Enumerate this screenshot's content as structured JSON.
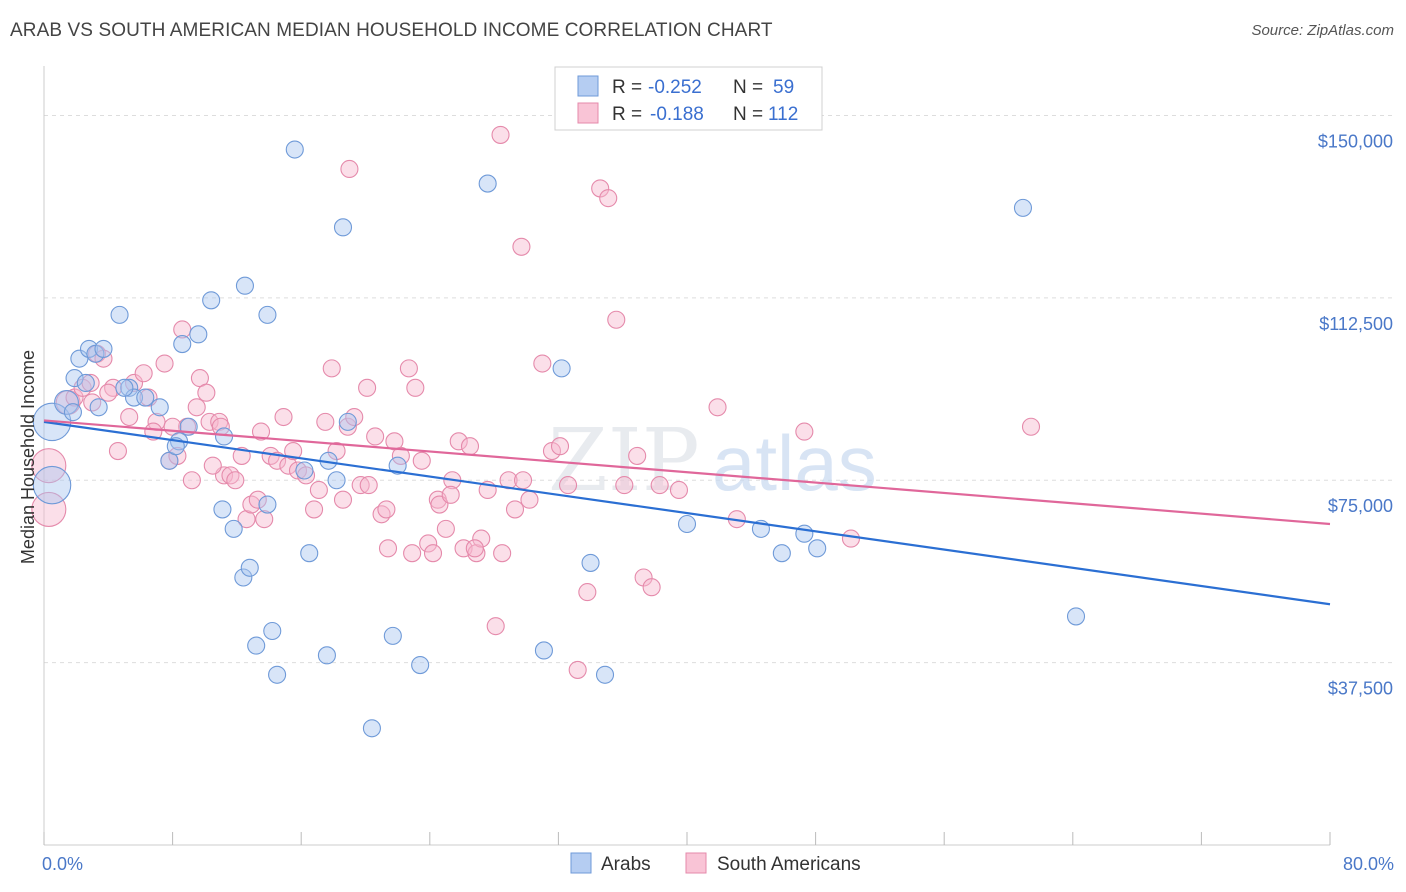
{
  "title": "ARAB VS SOUTH AMERICAN MEDIAN HOUSEHOLD INCOME CORRELATION CHART",
  "source": "Source: ZipAtlas.com",
  "watermark": {
    "zip": "ZIP",
    "atlas": "atlas"
  },
  "colors": {
    "arabs_fill": "#a9c5f0",
    "arabs_stroke": "#6f9ad8",
    "arabs_line": "#2b6fd3",
    "sa_fill": "#f7b9cf",
    "sa_stroke": "#e58aab",
    "sa_line": "#e0679a",
    "tick_text": "#4a78c8",
    "grid": "#dddddd"
  },
  "legend": {
    "rows": [
      {
        "r_label": "R = ",
        "r_value": "-0.252",
        "n_label": "N = ",
        "n_value": "59"
      },
      {
        "r_label": "R = ",
        "r_value": "-0.188",
        "n_label": "N = ",
        "n_value": "112"
      }
    ]
  },
  "chart_data": {
    "type": "scatter",
    "title": "ARAB VS SOUTH AMERICAN MEDIAN HOUSEHOLD INCOME CORRELATION CHART",
    "xlabel": "",
    "ylabel": "Median Household Income",
    "xlim": [
      0,
      80
    ],
    "ylim": [
      0,
      157500
    ],
    "x_tick_labels": [
      "0.0%",
      "80.0%"
    ],
    "y_ticks": [
      37500,
      75000,
      112500,
      150000
    ],
    "y_tick_labels": [
      "$37,500",
      "$75,000",
      "$112,500",
      "$150,000"
    ],
    "legend_position": "top-center",
    "bottom_legend": [
      "Arabs",
      "South Americans"
    ],
    "grid": true,
    "series": [
      {
        "name": "Arabs",
        "trend": {
          "x": [
            0,
            80
          ],
          "y": [
            87000,
            49500
          ]
        },
        "points": [
          [
            0.5,
            87000,
            2.2
          ],
          [
            0.5,
            74000,
            2.2
          ],
          [
            1.4,
            91000,
            1.4
          ],
          [
            1.8,
            89000,
            1
          ],
          [
            2.2,
            100000,
            1
          ],
          [
            2.8,
            102000,
            1
          ],
          [
            3.2,
            101000,
            1
          ],
          [
            1.9,
            96000,
            1
          ],
          [
            3.4,
            90000,
            1
          ],
          [
            4.7,
            109000,
            1
          ],
          [
            3.7,
            102000,
            1
          ],
          [
            5.3,
            94000,
            1
          ],
          [
            5.6,
            92000,
            1
          ],
          [
            6.3,
            92000,
            1
          ],
          [
            7.2,
            90000,
            1
          ],
          [
            8.4,
            83000,
            1
          ],
          [
            7.8,
            79000,
            1
          ],
          [
            8.2,
            82000,
            1
          ],
          [
            8.6,
            103000,
            1
          ],
          [
            9.6,
            105000,
            1
          ],
          [
            10.4,
            112000,
            1
          ],
          [
            11.2,
            84000,
            1
          ],
          [
            11.1,
            69000,
            1
          ],
          [
            11.8,
            65000,
            1
          ],
          [
            12.4,
            55000,
            1
          ],
          [
            12.5,
            115000,
            1
          ],
          [
            13.9,
            109000,
            1
          ],
          [
            13.9,
            70000,
            1
          ],
          [
            12.8,
            57000,
            1
          ],
          [
            15.6,
            143000,
            1
          ],
          [
            18.6,
            127000,
            1
          ],
          [
            18.9,
            87000,
            1
          ],
          [
            17.7,
            79000,
            1
          ],
          [
            16.2,
            77000,
            1
          ],
          [
            18.2,
            75000,
            1
          ],
          [
            16.5,
            60000,
            1
          ],
          [
            13.2,
            41000,
            1
          ],
          [
            14.2,
            44000,
            1
          ],
          [
            14.5,
            35000,
            1
          ],
          [
            17.6,
            39000,
            1
          ],
          [
            22.0,
            78000,
            1
          ],
          [
            20.4,
            24000,
            1
          ],
          [
            21.7,
            43000,
            1
          ],
          [
            23.4,
            37000,
            1
          ],
          [
            27.6,
            136000,
            1
          ],
          [
            32.2,
            98000,
            1
          ],
          [
            31.1,
            40000,
            1
          ],
          [
            34.0,
            58000,
            1
          ],
          [
            34.9,
            35000,
            1
          ],
          [
            40.0,
            66000,
            1
          ],
          [
            44.6,
            65000,
            1
          ],
          [
            45.9,
            60000,
            1
          ],
          [
            47.3,
            64000,
            1
          ],
          [
            48.1,
            61000,
            1
          ],
          [
            60.9,
            131000,
            1
          ],
          [
            64.2,
            47000,
            1
          ],
          [
            5.0,
            94000,
            1
          ],
          [
            2.6,
            95000,
            1
          ],
          [
            9.0,
            86000,
            1
          ]
        ]
      },
      {
        "name": "South Americans",
        "trend": {
          "x": [
            0,
            80
          ],
          "y": [
            87300,
            66000
          ]
        },
        "points": [
          [
            0.3,
            78000,
            2
          ],
          [
            0.3,
            69000,
            2
          ],
          [
            1.5,
            91000,
            1.4
          ],
          [
            1.9,
            92000,
            1
          ],
          [
            2.4,
            94000,
            1
          ],
          [
            2.9,
            95000,
            1
          ],
          [
            3.3,
            101000,
            1
          ],
          [
            3.7,
            100000,
            1
          ],
          [
            4.3,
            94000,
            1
          ],
          [
            4.6,
            81000,
            1
          ],
          [
            5.3,
            88000,
            1
          ],
          [
            5.6,
            95000,
            1
          ],
          [
            6.2,
            97000,
            1
          ],
          [
            6.5,
            92000,
            1
          ],
          [
            7.0,
            87000,
            1
          ],
          [
            7.5,
            99000,
            1
          ],
          [
            7.8,
            79000,
            1
          ],
          [
            8.3,
            80000,
            1
          ],
          [
            8.6,
            106000,
            1
          ],
          [
            8.9,
            86000,
            1
          ],
          [
            9.2,
            75000,
            1
          ],
          [
            9.5,
            90000,
            1
          ],
          [
            9.7,
            96000,
            1
          ],
          [
            10.1,
            93000,
            1
          ],
          [
            10.3,
            87000,
            1
          ],
          [
            10.9,
            87000,
            1
          ],
          [
            11.2,
            76000,
            1
          ],
          [
            11.6,
            76000,
            1
          ],
          [
            11.9,
            75000,
            1
          ],
          [
            12.3,
            80000,
            1
          ],
          [
            12.6,
            67000,
            1
          ],
          [
            12.9,
            70000,
            1
          ],
          [
            13.3,
            71000,
            1
          ],
          [
            13.7,
            67000,
            1
          ],
          [
            14.1,
            80000,
            1
          ],
          [
            14.5,
            79000,
            1
          ],
          [
            14.9,
            88000,
            1
          ],
          [
            15.2,
            78000,
            1
          ],
          [
            15.5,
            81000,
            1
          ],
          [
            15.8,
            77000,
            1
          ],
          [
            16.3,
            76000,
            1
          ],
          [
            16.8,
            69000,
            1
          ],
          [
            17.1,
            73000,
            1
          ],
          [
            17.5,
            87000,
            1
          ],
          [
            17.9,
            98000,
            1
          ],
          [
            18.2,
            81000,
            1
          ],
          [
            18.6,
            71000,
            1
          ],
          [
            18.9,
            86000,
            1
          ],
          [
            19.3,
            88000,
            1
          ],
          [
            19.7,
            74000,
            1
          ],
          [
            20.1,
            94000,
            1
          ],
          [
            20.6,
            84000,
            1
          ],
          [
            21.0,
            68000,
            1
          ],
          [
            21.3,
            69000,
            1
          ],
          [
            21.8,
            83000,
            1
          ],
          [
            22.2,
            80000,
            1
          ],
          [
            22.7,
            98000,
            1
          ],
          [
            23.1,
            94000,
            1
          ],
          [
            23.5,
            79000,
            1
          ],
          [
            23.9,
            62000,
            1
          ],
          [
            24.2,
            60000,
            1
          ],
          [
            24.5,
            71000,
            1
          ],
          [
            25.0,
            65000,
            1
          ],
          [
            25.4,
            75000,
            1
          ],
          [
            25.8,
            83000,
            1
          ],
          [
            26.1,
            61000,
            1
          ],
          [
            26.5,
            82000,
            1
          ],
          [
            26.9,
            60000,
            1
          ],
          [
            27.2,
            63000,
            1
          ],
          [
            27.6,
            73000,
            1
          ],
          [
            28.1,
            45000,
            1
          ],
          [
            28.5,
            60000,
            1
          ],
          [
            28.9,
            75000,
            1
          ],
          [
            29.3,
            69000,
            1
          ],
          [
            29.8,
            75000,
            1
          ],
          [
            30.2,
            71000,
            1
          ],
          [
            31.0,
            99000,
            1
          ],
          [
            31.6,
            81000,
            1
          ],
          [
            32.1,
            82000,
            1
          ],
          [
            32.6,
            74000,
            1
          ],
          [
            33.2,
            36000,
            1
          ],
          [
            33.8,
            52000,
            1
          ],
          [
            34.6,
            135000,
            1
          ],
          [
            35.1,
            133000,
            1
          ],
          [
            35.6,
            108000,
            1
          ],
          [
            36.1,
            74000,
            1
          ],
          [
            36.9,
            80000,
            1
          ],
          [
            37.3,
            55000,
            1
          ],
          [
            37.8,
            53000,
            1
          ],
          [
            38.3,
            74000,
            1
          ],
          [
            39.5,
            73000,
            1
          ],
          [
            41.9,
            90000,
            1
          ],
          [
            43.1,
            67000,
            1
          ],
          [
            47.3,
            85000,
            1
          ],
          [
            50.2,
            63000,
            1
          ],
          [
            61.4,
            86000,
            1
          ],
          [
            28.4,
            146000,
            1
          ],
          [
            29.7,
            123000,
            1
          ],
          [
            19.0,
            139000,
            1
          ],
          [
            10.5,
            78000,
            1
          ],
          [
            6.8,
            85000,
            1
          ],
          [
            8.0,
            86000,
            1
          ],
          [
            11.0,
            86000,
            1
          ],
          [
            13.5,
            85000,
            1
          ],
          [
            20.2,
            74000,
            1
          ],
          [
            21.4,
            61000,
            1
          ],
          [
            22.9,
            60000,
            1
          ],
          [
            24.6,
            70000,
            1
          ],
          [
            25.3,
            72000,
            1
          ],
          [
            26.8,
            61000,
            1
          ],
          [
            3.0,
            91000,
            1
          ],
          [
            4.0,
            93000,
            1
          ]
        ]
      }
    ]
  }
}
